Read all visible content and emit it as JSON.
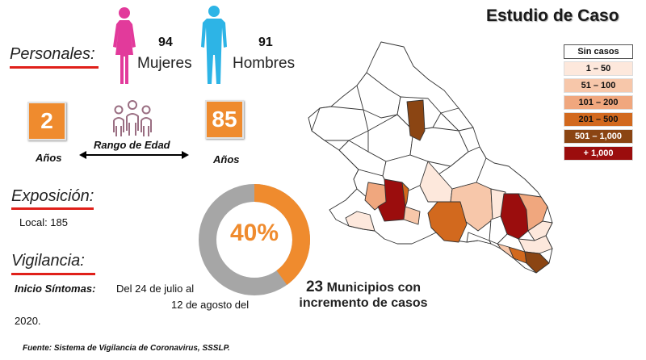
{
  "title": "Estudio de Caso",
  "personales": {
    "label": "Personales:",
    "mujeres": {
      "count": "94",
      "label": "Mujeres"
    },
    "hombres": {
      "count": "91",
      "label": "Hombres"
    }
  },
  "edad": {
    "min": "2",
    "max": "85",
    "unit": "Años",
    "range_label": "Rango de Edad"
  },
  "exposicion": {
    "label": "Exposición:",
    "local": "Local: 185"
  },
  "donut": {
    "percent_label": "40%",
    "fraction": 0.4,
    "colors": {
      "highlight": "#ef8b2e",
      "rest": "#a6a6a6"
    }
  },
  "vigilancia": {
    "label": "Vigilancia:",
    "inicio_label": "Inicio Síntomas:",
    "line1": "Del 24 de julio al",
    "line2": "12 de agosto del",
    "line3": "2020."
  },
  "municipios": {
    "number": "23",
    "line1_rest": "Municipios con",
    "line2": "incremento de casos"
  },
  "source": "Fuente: Sistema de Vigilancia de Coronavirus, SSSLP.",
  "legend": [
    {
      "label": "Sin casos",
      "color": "#ffffff",
      "text_color": "#111111"
    },
    {
      "label": "1 – 50",
      "color": "#fde8dc",
      "text_color": "#111111"
    },
    {
      "label": "51 – 100",
      "color": "#f7c7aa",
      "text_color": "#111111"
    },
    {
      "label": "101 – 200",
      "color": "#f0a77e",
      "text_color": "#111111"
    },
    {
      "label": "201 – 500",
      "color": "#d2691e",
      "text_color": "#111111"
    },
    {
      "label": "501 – 1,000",
      "color": "#8b4513",
      "text_color": "#ffffff"
    },
    {
      "label": "+ 1,000",
      "color": "#9b0d0d",
      "text_color": "#ffffff"
    }
  ],
  "colors": {
    "female": "#e23a9b",
    "male": "#2db4e6",
    "accent": "#ef8b2e",
    "underline": "#e0201a"
  }
}
